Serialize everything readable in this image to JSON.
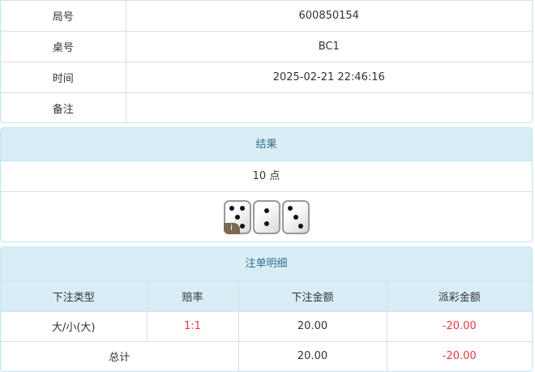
{
  "info": {
    "rows": [
      {
        "label": "局号",
        "value": "600850154"
      },
      {
        "label": "桌号",
        "value": "BC1"
      },
      {
        "label": "时间",
        "value": "2025-02-21 22:46:16"
      },
      {
        "label": "备注",
        "value": ""
      }
    ]
  },
  "result": {
    "title": "结果",
    "points": "10 点",
    "dice": [
      5,
      2,
      3
    ],
    "info_badge": "i"
  },
  "bets": {
    "title": "注单明细",
    "columns": [
      "下注类型",
      "赔率",
      "下注金额",
      "派彩金额"
    ],
    "rows": [
      {
        "type": "大/小(大)",
        "odds": "1:1",
        "amount": "20.00",
        "payout": "-20.00"
      }
    ],
    "total": {
      "label": "总计",
      "amount": "20.00",
      "payout": "-20.00"
    }
  },
  "colors": {
    "header_bg": "#d9edf7",
    "header_text": "#31708f",
    "negative": "#e4393c"
  }
}
